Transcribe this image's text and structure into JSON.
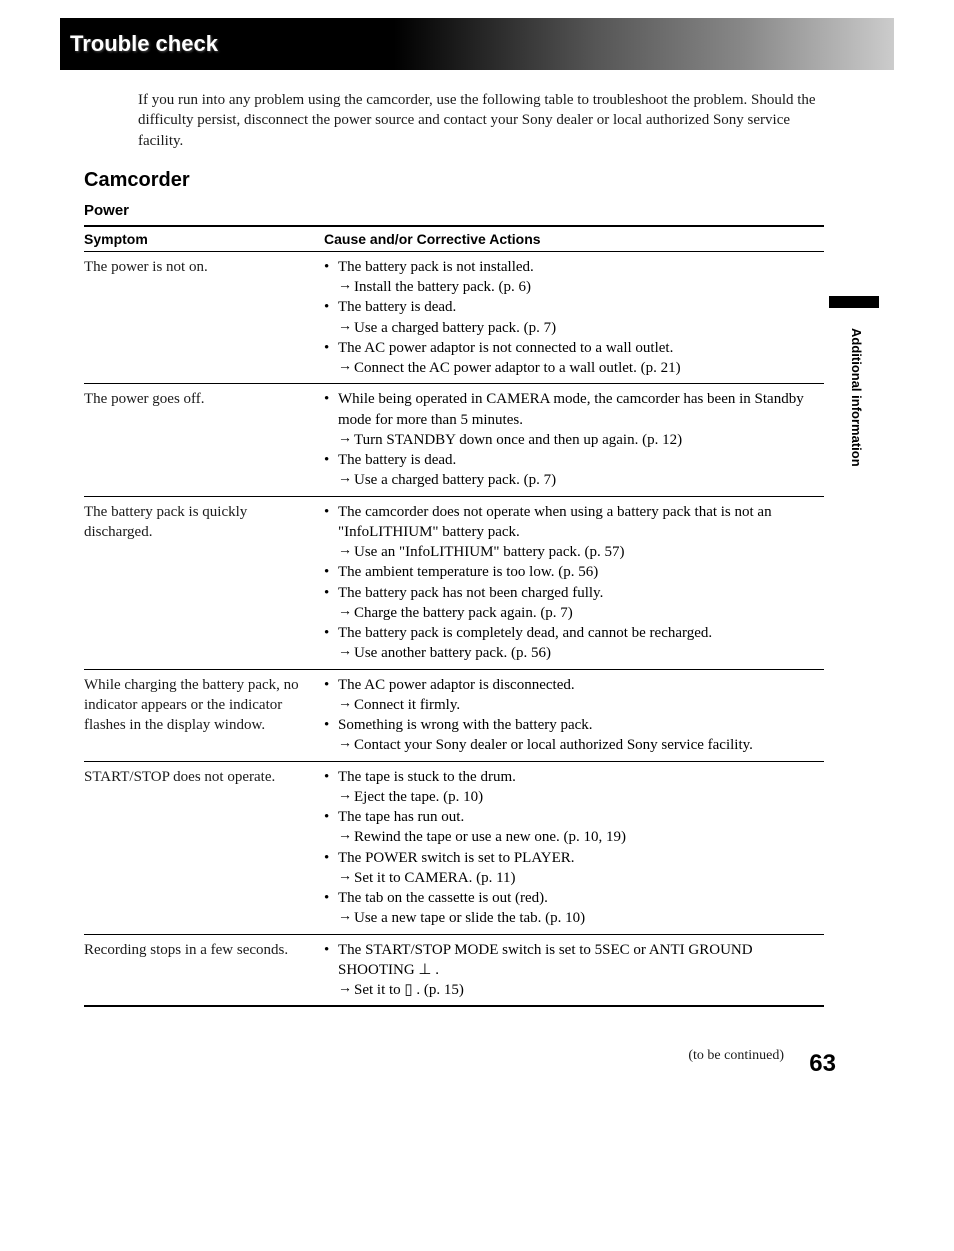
{
  "header": {
    "title": "Trouble check"
  },
  "intro": "If you run into any problem using the camcorder, use the following table to troubleshoot the problem. Should the difficulty persist, disconnect the power source and contact your Sony dealer or local authorized Sony service facility.",
  "section": "Camcorder",
  "subsection": "Power",
  "columns": {
    "left": "Symptom",
    "right": "Cause and/or Corrective Actions"
  },
  "side_label": "Additional information",
  "continued": "(to be continued)",
  "page_number": "63",
  "rows": [
    {
      "symptom": "The power is not on.",
      "items": [
        {
          "type": "cause",
          "text": "The battery pack is not installed."
        },
        {
          "type": "action",
          "text": "Install the battery pack. (p. 6)"
        },
        {
          "type": "cause",
          "text": "The battery is dead."
        },
        {
          "type": "action",
          "text": "Use a charged battery pack. (p. 7)"
        },
        {
          "type": "cause",
          "text": "The AC power adaptor is not connected to a wall outlet."
        },
        {
          "type": "action",
          "text": "Connect the AC power adaptor to a wall outlet. (p. 21)"
        }
      ]
    },
    {
      "symptom": "The power goes off.",
      "items": [
        {
          "type": "cause",
          "text": "While being operated in CAMERA mode, the camcorder has been in Standby mode for more than 5 minutes."
        },
        {
          "type": "action",
          "text": "Turn STANDBY down once and then up again. (p. 12)"
        },
        {
          "type": "cause",
          "text": "The battery is dead."
        },
        {
          "type": "action",
          "text": "Use a charged battery pack. (p. 7)"
        }
      ]
    },
    {
      "symptom": "The battery pack is quickly discharged.",
      "items": [
        {
          "type": "cause",
          "text": "The camcorder does not operate when using a battery pack that is not an \"InfoLITHIUM\" battery pack."
        },
        {
          "type": "action",
          "text": "Use an \"InfoLITHIUM\" battery pack. (p. 57)"
        },
        {
          "type": "cause",
          "text": "The ambient temperature is too low. (p. 56)"
        },
        {
          "type": "cause",
          "text": "The battery pack has not been charged fully."
        },
        {
          "type": "action",
          "text": "Charge the battery pack again. (p. 7)"
        },
        {
          "type": "cause",
          "text": "The battery pack is completely dead, and cannot be recharged."
        },
        {
          "type": "action",
          "text": "Use another battery pack. (p. 56)"
        }
      ]
    },
    {
      "symptom": "While charging the battery pack, no indicator appears or the indicator flashes in the display window.",
      "items": [
        {
          "type": "cause",
          "text": "The AC power adaptor is disconnected."
        },
        {
          "type": "action",
          "text": "Connect it firmly."
        },
        {
          "type": "cause",
          "text": "Something is wrong with the battery pack."
        },
        {
          "type": "action",
          "text": "Contact your Sony dealer or local authorized Sony service facility."
        }
      ]
    },
    {
      "symptom": "START/STOP does not operate.",
      "items": [
        {
          "type": "cause",
          "text": "The tape is stuck to the drum."
        },
        {
          "type": "action",
          "text": "Eject the tape. (p. 10)"
        },
        {
          "type": "cause",
          "text": "The tape has run out."
        },
        {
          "type": "action",
          "text": "Rewind the tape or use a new one. (p. 10, 19)"
        },
        {
          "type": "cause",
          "text": "The POWER switch is set to PLAYER."
        },
        {
          "type": "action",
          "text": "Set it to CAMERA. (p. 11)"
        },
        {
          "type": "cause",
          "text": "The tab on the cassette is out (red)."
        },
        {
          "type": "action",
          "text": "Use a new tape or slide the tab. (p. 10)"
        }
      ]
    },
    {
      "symptom": "Recording stops in a few seconds.",
      "items": [
        {
          "type": "cause",
          "text": "The START/STOP MODE switch is set to 5SEC or ANTI GROUND SHOOTING  ⊥ ."
        },
        {
          "type": "action",
          "text": "Set it to  ▯ . (p. 15)"
        }
      ]
    }
  ]
}
